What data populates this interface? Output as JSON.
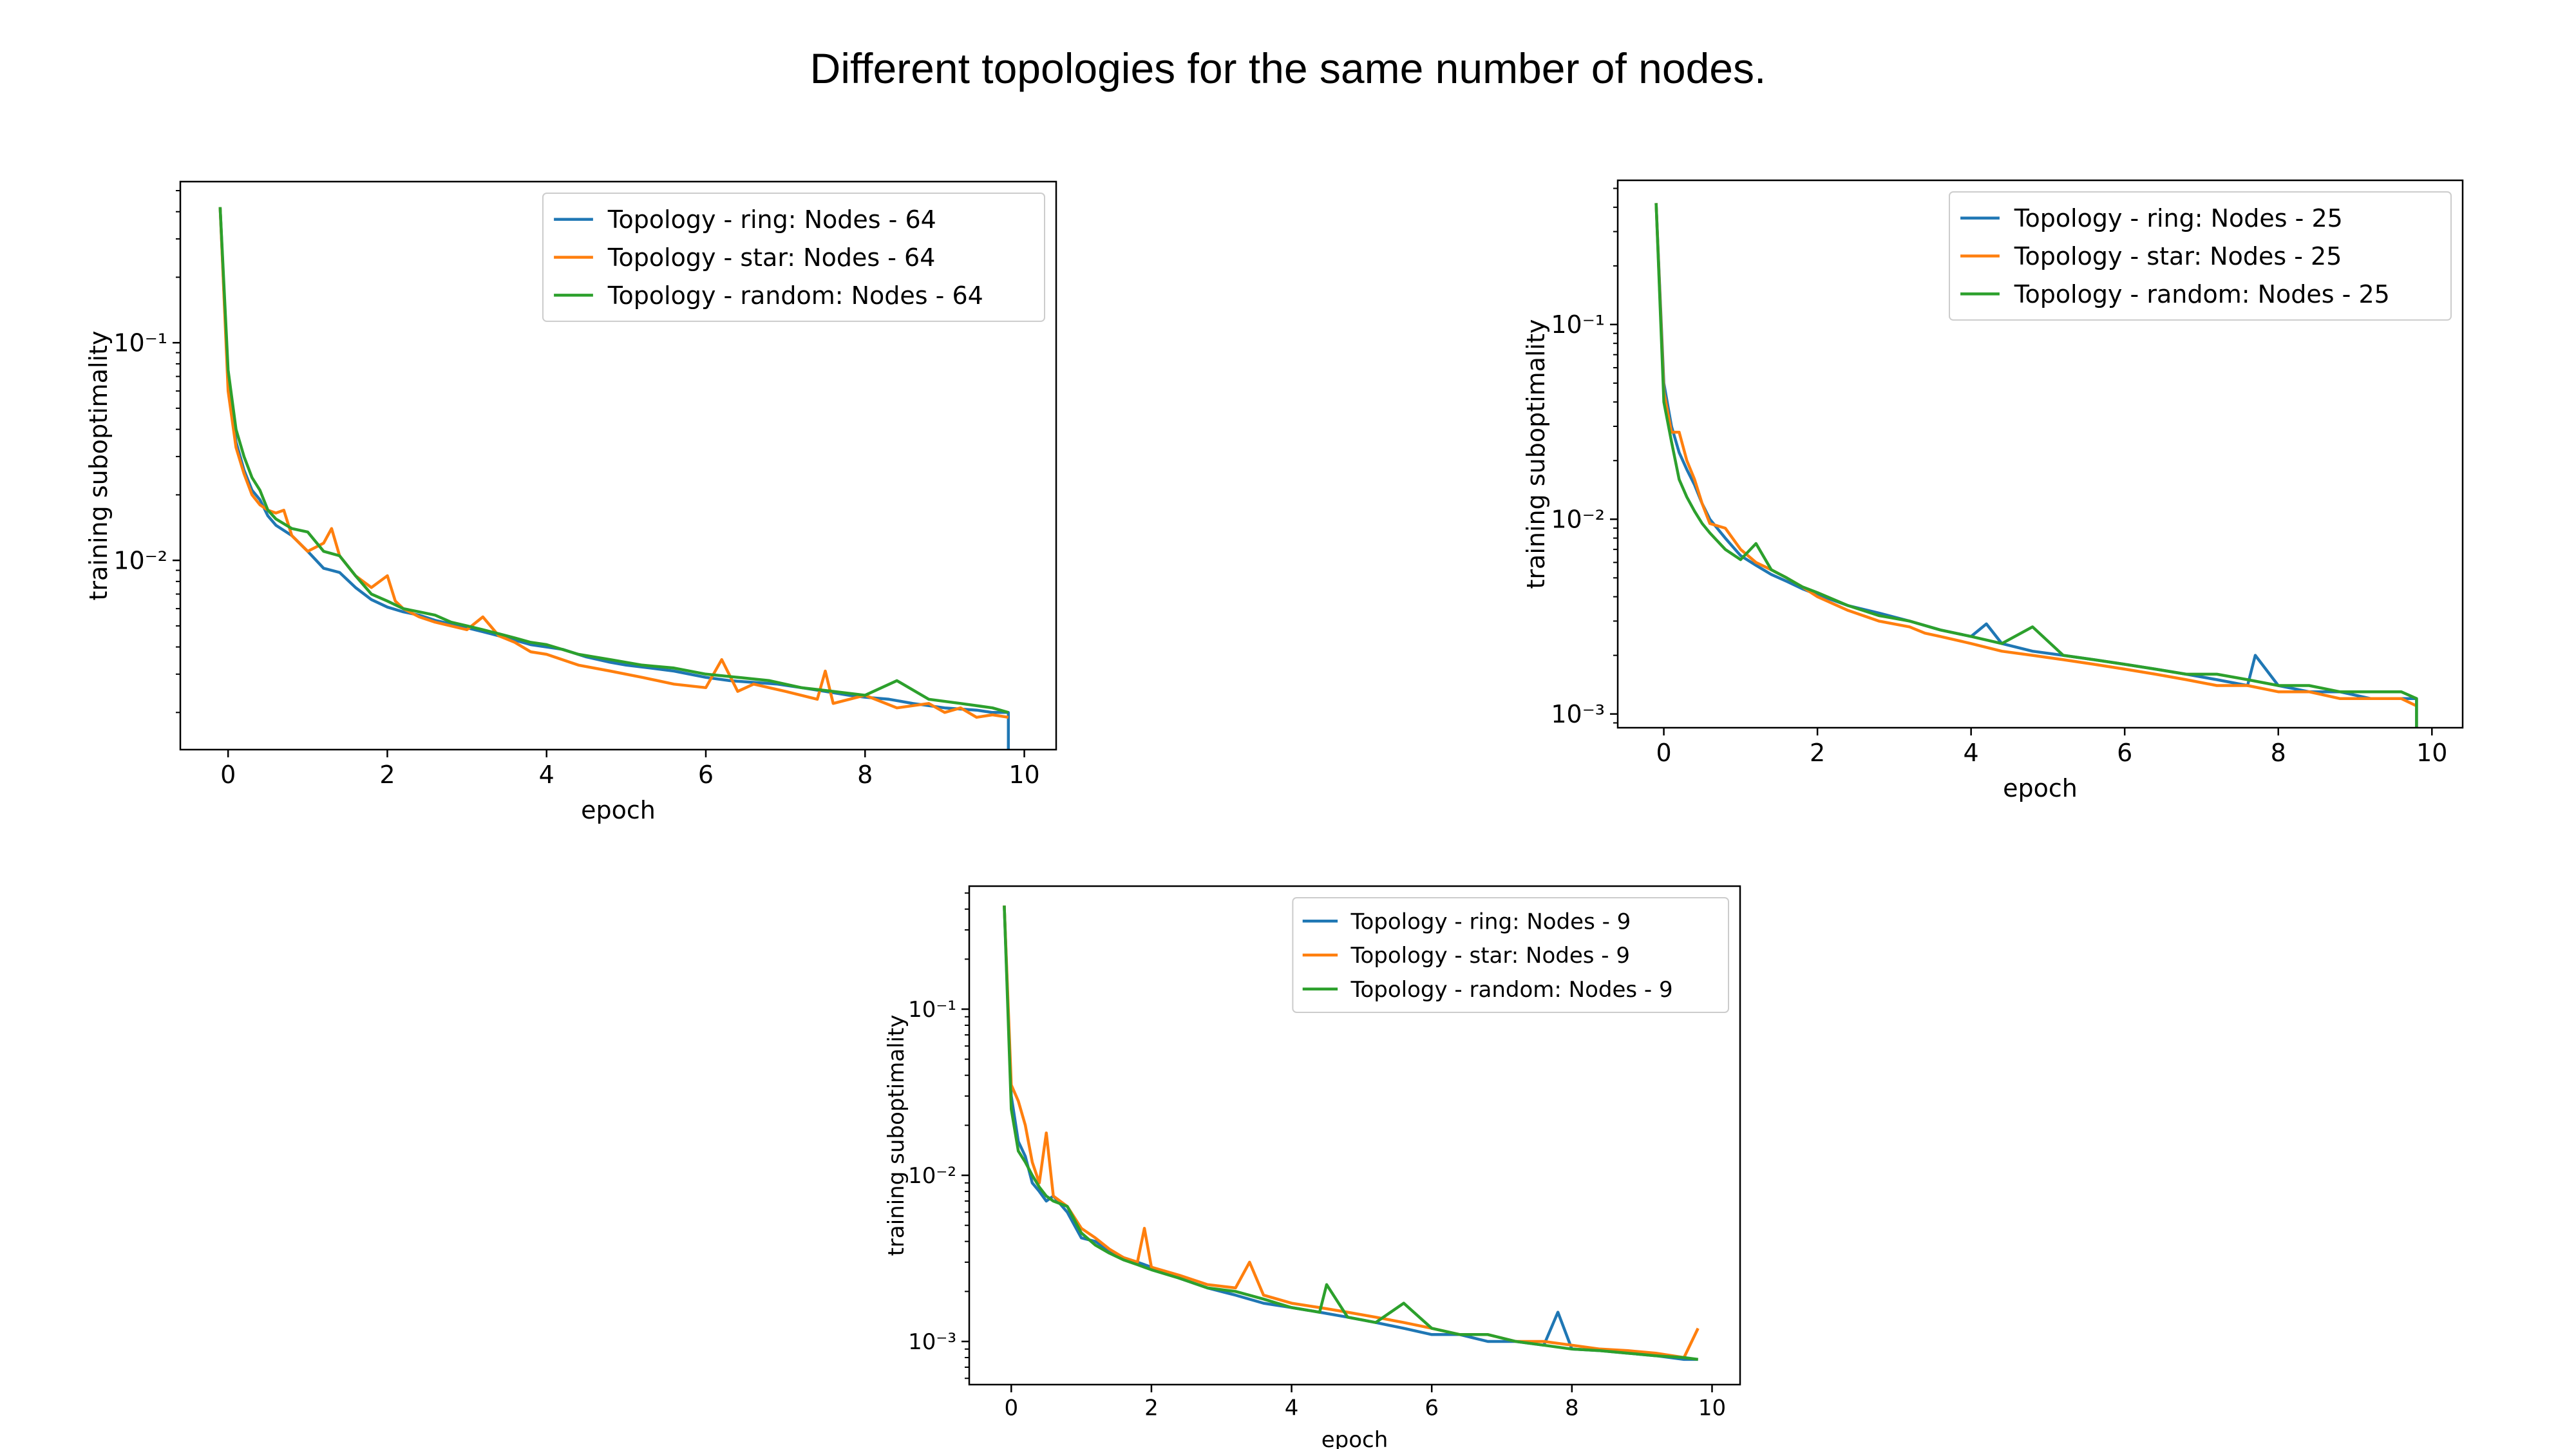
{
  "page_title": "Different topologies for the same number of nodes.",
  "colors": {
    "ring": "#1f77b4",
    "star": "#ff7f0e",
    "random": "#2ca02c"
  },
  "chart_data": [
    {
      "type": "line",
      "xlabel": "epoch",
      "ylabel": "training suboptimality",
      "y_scale": "log",
      "xlim": [
        -0.6,
        10.4
      ],
      "ylim": [
        0.00135,
        0.55
      ],
      "x_ticks": [
        0,
        2,
        4,
        6,
        8,
        10
      ],
      "x_tick_labels": [
        "0",
        "2",
        "4",
        "6",
        "8",
        "10"
      ],
      "y_ticks": [
        0.1,
        0.01
      ],
      "y_tick_labels": [
        "10⁻¹",
        "10⁻²"
      ],
      "legend_position": "top-right",
      "series": [
        {
          "name": "Topology - ring: Nodes - 64",
          "color_key": "ring",
          "x": [
            -0.1,
            0.0,
            0.1,
            0.2,
            0.3,
            0.4,
            0.5,
            0.6,
            0.8,
            1.0,
            1.2,
            1.4,
            1.6,
            1.8,
            2.0,
            2.2,
            2.4,
            2.6,
            2.8,
            3.0,
            3.2,
            3.4,
            3.6,
            3.8,
            4.0,
            4.2,
            4.5,
            4.8,
            5.0,
            5.3,
            5.6,
            6.0,
            6.3,
            6.6,
            6.9,
            7.2,
            7.5,
            7.8,
            8.0,
            8.3,
            8.6,
            9.0,
            9.4,
            9.6,
            9.8,
            9.8
          ],
          "y": [
            0.42,
            0.065,
            0.035,
            0.026,
            0.021,
            0.019,
            0.016,
            0.0145,
            0.013,
            0.011,
            0.0092,
            0.0088,
            0.0075,
            0.0066,
            0.0061,
            0.0058,
            0.0056,
            0.0053,
            0.0051,
            0.0049,
            0.0047,
            0.0045,
            0.0043,
            0.0041,
            0.004,
            0.0039,
            0.0036,
            0.0034,
            0.0033,
            0.0032,
            0.0031,
            0.0029,
            0.0028,
            0.00275,
            0.0027,
            0.0026,
            0.0025,
            0.0024,
            0.00235,
            0.0023,
            0.0022,
            0.0021,
            0.00205,
            0.002,
            0.002,
            0.00135
          ]
        },
        {
          "name": "Topology - star: Nodes - 64",
          "color_key": "star",
          "x": [
            -0.1,
            0.0,
            0.1,
            0.2,
            0.3,
            0.4,
            0.5,
            0.6,
            0.7,
            0.8,
            1.0,
            1.2,
            1.3,
            1.4,
            1.6,
            1.8,
            2.0,
            2.1,
            2.2,
            2.4,
            2.6,
            3.0,
            3.2,
            3.4,
            3.6,
            3.8,
            4.0,
            4.4,
            4.8,
            5.2,
            5.6,
            6.0,
            6.2,
            6.4,
            6.6,
            7.0,
            7.4,
            7.5,
            7.6,
            8.0,
            8.4,
            8.8,
            9.0,
            9.2,
            9.4,
            9.6,
            9.8
          ],
          "y": [
            0.42,
            0.06,
            0.033,
            0.025,
            0.02,
            0.018,
            0.017,
            0.0165,
            0.017,
            0.013,
            0.011,
            0.012,
            0.014,
            0.0105,
            0.0085,
            0.0075,
            0.0085,
            0.0065,
            0.006,
            0.0055,
            0.0052,
            0.0048,
            0.0055,
            0.0045,
            0.0042,
            0.0038,
            0.0037,
            0.0033,
            0.0031,
            0.0029,
            0.0027,
            0.0026,
            0.0035,
            0.0025,
            0.0027,
            0.0025,
            0.0023,
            0.0031,
            0.0022,
            0.0024,
            0.0021,
            0.0022,
            0.002,
            0.0021,
            0.0019,
            0.00195,
            0.0019
          ]
        },
        {
          "name": "Topology - random: Nodes - 64",
          "color_key": "random",
          "x": [
            -0.1,
            0.0,
            0.1,
            0.2,
            0.3,
            0.4,
            0.5,
            0.6,
            0.8,
            1.0,
            1.2,
            1.4,
            1.6,
            1.8,
            2.0,
            2.2,
            2.4,
            2.6,
            2.8,
            3.0,
            3.2,
            3.4,
            3.6,
            3.8,
            4.0,
            4.4,
            4.8,
            5.2,
            5.6,
            6.0,
            6.4,
            6.8,
            7.2,
            7.6,
            8.0,
            8.4,
            8.8,
            9.2,
            9.6,
            9.8
          ],
          "y": [
            0.42,
            0.075,
            0.04,
            0.03,
            0.024,
            0.021,
            0.017,
            0.0155,
            0.014,
            0.0135,
            0.011,
            0.0105,
            0.0085,
            0.007,
            0.0065,
            0.006,
            0.0058,
            0.0056,
            0.0052,
            0.005,
            0.0048,
            0.0046,
            0.0044,
            0.0042,
            0.0041,
            0.0037,
            0.0035,
            0.0033,
            0.0032,
            0.003,
            0.0029,
            0.0028,
            0.0026,
            0.0025,
            0.0024,
            0.0028,
            0.0023,
            0.0022,
            0.0021,
            0.002
          ]
        }
      ]
    },
    {
      "type": "line",
      "xlabel": "epoch",
      "ylabel": "training suboptimality",
      "y_scale": "log",
      "xlim": [
        -0.6,
        10.4
      ],
      "ylim": [
        0.00085,
        0.55
      ],
      "x_ticks": [
        0,
        2,
        4,
        6,
        8,
        10
      ],
      "x_tick_labels": [
        "0",
        "2",
        "4",
        "6",
        "8",
        "10"
      ],
      "y_ticks": [
        0.1,
        0.01,
        0.001
      ],
      "y_tick_labels": [
        "10⁻¹",
        "10⁻²",
        "10⁻³"
      ],
      "legend_position": "top-right",
      "series": [
        {
          "name": "Topology - ring: Nodes - 25",
          "color_key": "ring",
          "x": [
            -0.1,
            0.0,
            0.1,
            0.2,
            0.3,
            0.4,
            0.5,
            0.6,
            0.8,
            1.0,
            1.2,
            1.4,
            1.6,
            1.8,
            2.0,
            2.4,
            2.8,
            3.2,
            3.6,
            4.0,
            4.2,
            4.4,
            4.8,
            5.2,
            5.6,
            6.0,
            6.4,
            6.8,
            7.2,
            7.6,
            7.7,
            8.0,
            8.4,
            8.8,
            9.2,
            9.6,
            9.8,
            9.8
          ],
          "y": [
            0.42,
            0.05,
            0.03,
            0.022,
            0.018,
            0.015,
            0.012,
            0.01,
            0.008,
            0.0065,
            0.0058,
            0.0052,
            0.0048,
            0.0044,
            0.0041,
            0.0036,
            0.0033,
            0.003,
            0.0027,
            0.0025,
            0.0029,
            0.0023,
            0.0021,
            0.002,
            0.0019,
            0.0018,
            0.0017,
            0.0016,
            0.0015,
            0.0014,
            0.002,
            0.0014,
            0.0013,
            0.0013,
            0.0012,
            0.0012,
            0.0012,
            0.0008
          ]
        },
        {
          "name": "Topology - star: Nodes - 25",
          "color_key": "star",
          "x": [
            -0.1,
            0.0,
            0.1,
            0.2,
            0.3,
            0.4,
            0.5,
            0.6,
            0.8,
            1.0,
            1.2,
            1.4,
            1.6,
            1.8,
            2.0,
            2.4,
            2.8,
            3.2,
            3.4,
            3.6,
            4.0,
            4.4,
            4.8,
            5.2,
            5.6,
            6.0,
            6.4,
            6.8,
            7.2,
            7.6,
            8.0,
            8.4,
            8.8,
            9.2,
            9.6,
            9.8
          ],
          "y": [
            0.42,
            0.045,
            0.028,
            0.028,
            0.02,
            0.016,
            0.012,
            0.0095,
            0.009,
            0.007,
            0.006,
            0.0055,
            0.005,
            0.0045,
            0.004,
            0.0034,
            0.003,
            0.0028,
            0.0026,
            0.0025,
            0.0023,
            0.0021,
            0.002,
            0.0019,
            0.0018,
            0.0017,
            0.0016,
            0.0015,
            0.0014,
            0.0014,
            0.0013,
            0.0013,
            0.0012,
            0.0012,
            0.0012,
            0.0011
          ]
        },
        {
          "name": "Topology - random: Nodes - 25",
          "color_key": "random",
          "x": [
            -0.1,
            0.0,
            0.1,
            0.2,
            0.3,
            0.4,
            0.5,
            0.6,
            0.8,
            1.0,
            1.2,
            1.4,
            1.6,
            1.8,
            2.0,
            2.4,
            2.8,
            3.2,
            3.6,
            4.0,
            4.4,
            4.8,
            5.2,
            5.6,
            6.0,
            6.4,
            6.8,
            7.2,
            7.6,
            8.0,
            8.4,
            8.8,
            9.2,
            9.6,
            9.8,
            9.8
          ],
          "y": [
            0.42,
            0.04,
            0.025,
            0.016,
            0.013,
            0.011,
            0.0095,
            0.0085,
            0.007,
            0.0062,
            0.0075,
            0.0055,
            0.005,
            0.0045,
            0.0042,
            0.0036,
            0.0032,
            0.003,
            0.0027,
            0.0025,
            0.0023,
            0.0028,
            0.002,
            0.0019,
            0.0018,
            0.0017,
            0.0016,
            0.0016,
            0.0015,
            0.0014,
            0.0014,
            0.0013,
            0.0013,
            0.0013,
            0.0012,
            0.0008
          ]
        }
      ]
    },
    {
      "type": "line",
      "xlabel": "epoch",
      "ylabel": "training suboptimality",
      "y_scale": "log",
      "xlim": [
        -0.6,
        10.4
      ],
      "ylim": [
        0.00055,
        0.55
      ],
      "x_ticks": [
        0,
        2,
        4,
        6,
        8,
        10
      ],
      "x_tick_labels": [
        "0",
        "2",
        "4",
        "6",
        "8",
        "10"
      ],
      "y_ticks": [
        0.1,
        0.01,
        0.001
      ],
      "y_tick_labels": [
        "10⁻¹",
        "10⁻²",
        "10⁻³"
      ],
      "legend_position": "top-right",
      "series": [
        {
          "name": "Topology - ring: Nodes - 9",
          "color_key": "ring",
          "x": [
            -0.1,
            0.0,
            0.1,
            0.2,
            0.3,
            0.4,
            0.5,
            0.6,
            0.8,
            1.0,
            1.2,
            1.4,
            1.6,
            1.8,
            2.0,
            2.4,
            2.8,
            3.2,
            3.6,
            4.0,
            4.4,
            4.8,
            5.2,
            5.6,
            6.0,
            6.4,
            6.8,
            7.2,
            7.6,
            7.8,
            8.0,
            8.4,
            8.8,
            9.2,
            9.6,
            9.8
          ],
          "y": [
            0.42,
            0.03,
            0.016,
            0.013,
            0.009,
            0.008,
            0.007,
            0.0075,
            0.006,
            0.0042,
            0.004,
            0.0035,
            0.0032,
            0.003,
            0.0028,
            0.0024,
            0.0021,
            0.0019,
            0.0017,
            0.0016,
            0.0015,
            0.0014,
            0.0013,
            0.0012,
            0.0011,
            0.0011,
            0.001,
            0.001,
            0.00095,
            0.0015,
            0.0009,
            0.00088,
            0.00085,
            0.00082,
            0.00078,
            0.00078
          ]
        },
        {
          "name": "Topology - star: Nodes - 9",
          "color_key": "star",
          "x": [
            -0.1,
            0.0,
            0.1,
            0.2,
            0.3,
            0.4,
            0.5,
            0.6,
            0.8,
            1.0,
            1.2,
            1.4,
            1.6,
            1.8,
            1.9,
            2.0,
            2.4,
            2.8,
            3.2,
            3.4,
            3.6,
            4.0,
            4.4,
            4.8,
            5.2,
            5.6,
            6.0,
            6.4,
            6.8,
            7.2,
            7.6,
            8.0,
            8.4,
            8.8,
            9.2,
            9.6,
            9.8
          ],
          "y": [
            0.42,
            0.035,
            0.028,
            0.02,
            0.012,
            0.009,
            0.018,
            0.0075,
            0.0065,
            0.0048,
            0.0042,
            0.0036,
            0.0032,
            0.003,
            0.0048,
            0.0028,
            0.0025,
            0.0022,
            0.0021,
            0.003,
            0.0019,
            0.0017,
            0.0016,
            0.0015,
            0.0014,
            0.0013,
            0.0012,
            0.0011,
            0.0011,
            0.001,
            0.001,
            0.00095,
            0.0009,
            0.00088,
            0.00085,
            0.0008,
            0.0012
          ]
        },
        {
          "name": "Topology - random: Nodes - 9",
          "color_key": "random",
          "x": [
            -0.1,
            0.0,
            0.1,
            0.2,
            0.3,
            0.4,
            0.5,
            0.6,
            0.8,
            1.0,
            1.2,
            1.4,
            1.6,
            1.8,
            2.0,
            2.4,
            2.8,
            3.2,
            3.6,
            4.0,
            4.4,
            4.5,
            4.8,
            5.2,
            5.6,
            6.0,
            6.4,
            6.8,
            7.2,
            7.6,
            8.0,
            8.4,
            8.8,
            9.2,
            9.6,
            9.8
          ],
          "y": [
            0.42,
            0.025,
            0.014,
            0.012,
            0.01,
            0.0085,
            0.0075,
            0.007,
            0.0065,
            0.0045,
            0.0038,
            0.0034,
            0.0031,
            0.0029,
            0.0027,
            0.0024,
            0.0021,
            0.002,
            0.0018,
            0.0016,
            0.0015,
            0.0022,
            0.0014,
            0.0013,
            0.0017,
            0.0012,
            0.0011,
            0.0011,
            0.001,
            0.00095,
            0.0009,
            0.00088,
            0.00085,
            0.00082,
            0.0008,
            0.00078
          ]
        }
      ]
    }
  ]
}
